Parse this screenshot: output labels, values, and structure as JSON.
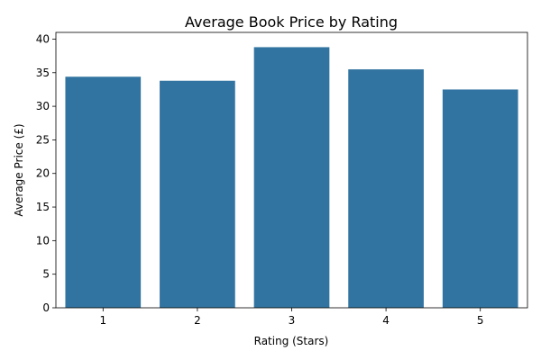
{
  "chart_data": {
    "type": "bar",
    "title": "Average Book Price by Rating",
    "xlabel": "Rating (Stars)",
    "ylabel": "Average Price (£)",
    "categories": [
      "1",
      "2",
      "3",
      "4",
      "5"
    ],
    "values": [
      34.4,
      33.8,
      38.8,
      35.5,
      32.5
    ],
    "ylim": [
      0,
      41
    ],
    "yticks": [
      0,
      5,
      10,
      15,
      20,
      25,
      30,
      35,
      40
    ],
    "grid": false,
    "bar_color": "#3274a1"
  }
}
